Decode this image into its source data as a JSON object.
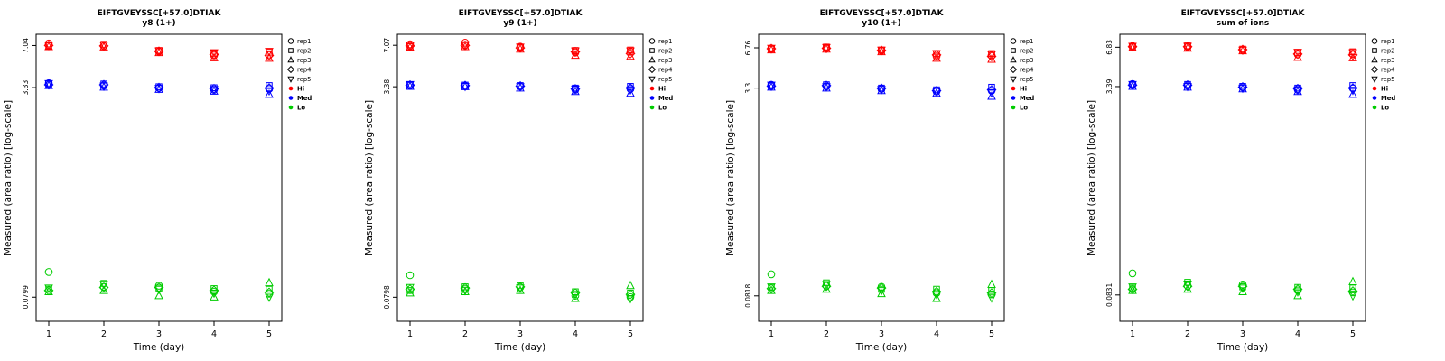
{
  "page": {
    "background": "#FFFFFF"
  },
  "legend": {
    "reps": [
      {
        "label": "rep1",
        "symbol": "circle"
      },
      {
        "label": "rep2",
        "symbol": "square"
      },
      {
        "label": "rep3",
        "symbol": "triangle-up"
      },
      {
        "label": "rep4",
        "symbol": "diamond"
      },
      {
        "label": "rep5",
        "symbol": "triangle-down"
      }
    ],
    "levels": [
      {
        "label": "Hi",
        "color": "#FF0000"
      },
      {
        "label": "Med",
        "color": "#0000FF"
      },
      {
        "label": "Lo",
        "color": "#00CC00"
      }
    ]
  },
  "chart_data": [
    {
      "type": "scatter",
      "title": "EIFTGVEYSSC[+57.0]DTIAK",
      "subtitle": "y8 (1+)",
      "xlabel": "Time (day)",
      "ylabel": "Measured (area ratio) [log-scale]",
      "x_days": [
        1,
        2,
        3,
        4,
        5
      ],
      "ylim": [
        0.052,
        8.6
      ],
      "yticks": [
        "7.04",
        "3.33",
        "0.0799"
      ],
      "legend_position": "right",
      "grid": false,
      "levels": [
        {
          "name": "Hi",
          "color": "#FF0000",
          "values": [
            [
              7.3,
              7.0,
              6.9,
              7.05,
              7.1
            ],
            [
              6.95,
              7.2,
              6.85,
              7.0,
              7.1
            ],
            [
              6.3,
              6.45,
              6.2,
              6.35,
              6.4
            ],
            [
              5.9,
              6.15,
              5.65,
              6.0,
              6.2
            ],
            [
              6.0,
              6.25,
              5.6,
              5.9,
              6.35
            ]
          ]
        },
        {
          "name": "Med",
          "color": "#0000FF",
          "values": [
            [
              3.6,
              3.55,
              3.45,
              3.5,
              3.58
            ],
            [
              3.45,
              3.55,
              3.35,
              3.5,
              3.42
            ],
            [
              3.3,
              3.38,
              3.22,
              3.33,
              3.28
            ],
            [
              3.2,
              3.32,
              3.12,
              3.26,
              3.22
            ],
            [
              3.25,
              3.45,
              2.95,
              3.3,
              3.15
            ]
          ]
        },
        {
          "name": "Lo",
          "color": "#00CC00",
          "values": [
            [
              0.125,
              0.092,
              0.088,
              0.09,
              0.094
            ],
            [
              0.096,
              0.102,
              0.09,
              0.095,
              0.1
            ],
            [
              0.098,
              0.094,
              0.082,
              0.095,
              0.092
            ],
            [
              0.088,
              0.093,
              0.08,
              0.09,
              0.086
            ],
            [
              0.085,
              0.092,
              0.103,
              0.087,
              0.08
            ]
          ]
        }
      ]
    },
    {
      "type": "scatter",
      "title": "EIFTGVEYSSC[+57.0]DTIAK",
      "subtitle": "y9 (1+)",
      "xlabel": "Time (day)",
      "ylabel": "Measured (area ratio) [log-scale]",
      "x_days": [
        1,
        2,
        3,
        4,
        5
      ],
      "ylim": [
        0.052,
        8.6
      ],
      "yticks": [
        "7.07",
        "3.38",
        "0.0798"
      ],
      "legend_position": "right",
      "grid": false,
      "levels": [
        {
          "name": "Hi",
          "color": "#FF0000",
          "values": [
            [
              7.2,
              6.9,
              6.8,
              7.0,
              7.05
            ],
            [
              7.4,
              7.1,
              6.9,
              7.05,
              7.15
            ],
            [
              6.9,
              6.8,
              6.6,
              6.75,
              6.85
            ],
            [
              6.2,
              6.45,
              5.9,
              6.3,
              6.4
            ],
            [
              6.3,
              6.5,
              5.8,
              6.1,
              6.4
            ]
          ]
        },
        {
          "name": "Med",
          "color": "#0000FF",
          "values": [
            [
              3.45,
              3.5,
              3.4,
              3.48,
              3.52
            ],
            [
              3.42,
              3.48,
              3.38,
              3.45,
              3.4
            ],
            [
              3.4,
              3.45,
              3.3,
              3.42,
              3.38
            ],
            [
              3.2,
              3.3,
              3.1,
              3.25,
              3.25
            ],
            [
              3.25,
              3.4,
              3.0,
              3.3,
              3.2
            ]
          ]
        },
        {
          "name": "Lo",
          "color": "#00CC00",
          "values": [
            [
              0.118,
              0.09,
              0.086,
              0.092,
              0.095
            ],
            [
              0.092,
              0.096,
              0.088,
              0.094,
              0.09
            ],
            [
              0.095,
              0.098,
              0.09,
              0.096,
              0.094
            ],
            [
              0.082,
              0.088,
              0.078,
              0.086,
              0.084
            ],
            [
              0.08,
              0.086,
              0.098,
              0.084,
              0.078
            ]
          ]
        }
      ]
    },
    {
      "type": "scatter",
      "title": "EIFTGVEYSSC[+57.0]DTIAK",
      "subtitle": "y10 (1+)",
      "xlabel": "Time (day)",
      "ylabel": "Measured (area ratio) [log-scale]",
      "x_days": [
        1,
        2,
        3,
        4,
        5
      ],
      "ylim": [
        0.052,
        8.6
      ],
      "yticks": [
        "6.76",
        "3.3",
        "0.0818"
      ],
      "legend_position": "right",
      "grid": false,
      "levels": [
        {
          "name": "Hi",
          "color": "#FF0000",
          "values": [
            [
              6.7,
              6.6,
              6.5,
              6.65,
              6.7
            ],
            [
              6.75,
              6.85,
              6.6,
              6.7,
              6.8
            ],
            [
              6.4,
              6.5,
              6.3,
              6.45,
              6.5
            ],
            [
              5.8,
              6.1,
              5.6,
              5.95,
              6.1
            ],
            [
              5.9,
              6.1,
              5.5,
              5.8,
              6.0
            ]
          ]
        },
        {
          "name": "Med",
          "color": "#0000FF",
          "values": [
            [
              3.5,
              3.45,
              3.35,
              3.42,
              3.48
            ],
            [
              3.4,
              3.5,
              3.3,
              3.45,
              3.38
            ],
            [
              3.25,
              3.3,
              3.15,
              3.28,
              3.22
            ],
            [
              3.1,
              3.2,
              3.0,
              3.15,
              3.12
            ],
            [
              3.15,
              3.35,
              2.85,
              3.2,
              3.05
            ]
          ]
        },
        {
          "name": "Lo",
          "color": "#00CC00",
          "values": [
            [
              0.12,
              0.095,
              0.09,
              0.093,
              0.096
            ],
            [
              0.098,
              0.103,
              0.092,
              0.097,
              0.1
            ],
            [
              0.096,
              0.092,
              0.085,
              0.094,
              0.09
            ],
            [
              0.086,
              0.092,
              0.078,
              0.088,
              0.084
            ],
            [
              0.084,
              0.09,
              0.1,
              0.086,
              0.079
            ]
          ]
        }
      ]
    },
    {
      "type": "scatter",
      "title": "EIFTGVEYSSC[+57.0]DTIAK",
      "subtitle": "sum of ions",
      "xlabel": "Time (day)",
      "ylabel": "Measured (area ratio) [log-scale]",
      "x_days": [
        1,
        2,
        3,
        4,
        5
      ],
      "ylim": [
        0.052,
        8.6
      ],
      "yticks": [
        "6.83",
        "3.39",
        "0.0831"
      ],
      "legend_position": "right",
      "grid": false,
      "levels": [
        {
          "name": "Hi",
          "color": "#FF0000",
          "values": [
            [
              7.0,
              6.85,
              6.75,
              6.9,
              6.95
            ],
            [
              6.85,
              7.0,
              6.7,
              6.9,
              6.95
            ],
            [
              6.5,
              6.6,
              6.4,
              6.55,
              6.5
            ],
            [
              6.0,
              6.2,
              5.7,
              6.05,
              6.25
            ],
            [
              6.05,
              6.3,
              5.65,
              5.95,
              6.2
            ]
          ]
        },
        {
          "name": "Med",
          "color": "#0000FF",
          "values": [
            [
              3.55,
              3.5,
              3.4,
              3.48,
              3.52
            ],
            [
              3.45,
              3.52,
              3.35,
              3.48,
              3.4
            ],
            [
              3.35,
              3.4,
              3.25,
              3.36,
              3.3
            ],
            [
              3.2,
              3.3,
              3.1,
              3.26,
              3.2
            ],
            [
              3.28,
              3.45,
              2.95,
              3.3,
              3.18
            ]
          ]
        },
        {
          "name": "Lo",
          "color": "#00CC00",
          "values": [
            [
              0.122,
              0.094,
              0.09,
              0.092,
              0.096
            ],
            [
              0.098,
              0.104,
              0.092,
              0.097,
              0.101
            ],
            [
              0.1,
              0.096,
              0.088,
              0.097,
              0.094
            ],
            [
              0.09,
              0.095,
              0.082,
              0.092,
              0.088
            ],
            [
              0.087,
              0.094,
              0.105,
              0.089,
              0.082
            ]
          ]
        }
      ]
    }
  ]
}
